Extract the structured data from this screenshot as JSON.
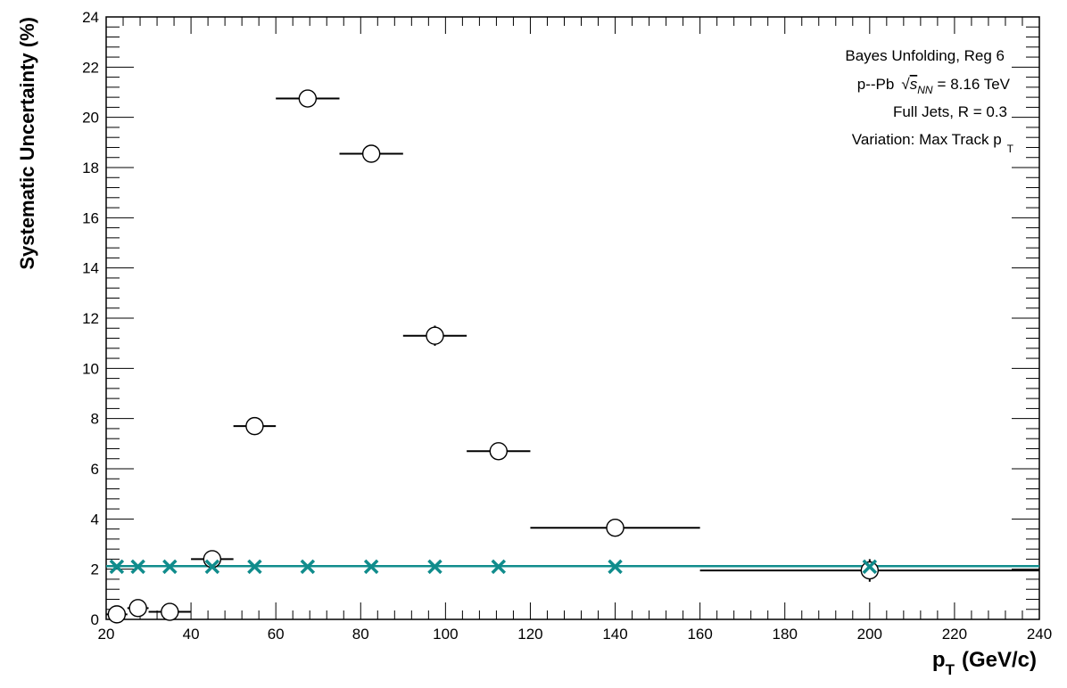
{
  "chart_data": {
    "type": "scatter",
    "xlabel": "p",
    "xlabel_sub": "T",
    "xlabel_unit": "(GeV/c)",
    "ylabel": "Systematic Uncertainty (%)",
    "xlim": [
      20,
      240
    ],
    "ylim": [
      0,
      24
    ],
    "x_ticks": [
      "20",
      "40",
      "60",
      "80",
      "100",
      "120",
      "140",
      "160",
      "180",
      "200",
      "220",
      "240"
    ],
    "y_ticks": [
      "0",
      "2",
      "4",
      "6",
      "8",
      "10",
      "12",
      "14",
      "16",
      "18",
      "20",
      "22",
      "24"
    ],
    "grid": false,
    "annotations": {
      "line1": "Bayes Unfolding, Reg 6",
      "line2_pre": "p--Pb",
      "line2_sym": "s",
      "line2_sub": "NN",
      "line2_post": "= 8.16 TeV",
      "line3": "Full Jets, R = 0.3",
      "line4_pre": "Variation: Max Track p",
      "line4_sub": "T"
    },
    "series": [
      {
        "marker": "open-circle",
        "color": "#000000",
        "points": [
          {
            "x": 22.5,
            "xlow": 20,
            "xhigh": 25,
            "y": 0.2,
            "yerr": 0.05
          },
          {
            "x": 27.5,
            "xlow": 25,
            "xhigh": 30,
            "y": 0.45,
            "yerr": 0.05
          },
          {
            "x": 35,
            "xlow": 30,
            "xhigh": 40,
            "y": 0.3,
            "yerr": 0.05
          },
          {
            "x": 45,
            "xlow": 40,
            "xhigh": 50,
            "y": 2.4,
            "yerr": 0.1
          },
          {
            "x": 55,
            "xlow": 50,
            "xhigh": 60,
            "y": 7.7,
            "yerr": 0.1
          },
          {
            "x": 67.5,
            "xlow": 60,
            "xhigh": 75,
            "y": 20.75,
            "yerr": 0.15
          },
          {
            "x": 82.5,
            "xlow": 75,
            "xhigh": 90,
            "y": 18.55,
            "yerr": 0.2
          },
          {
            "x": 97.5,
            "xlow": 90,
            "xhigh": 105,
            "y": 11.3,
            "yerr": 0.4
          },
          {
            "x": 112.5,
            "xlow": 105,
            "xhigh": 120,
            "y": 6.7,
            "yerr": 0.3
          },
          {
            "x": 140,
            "xlow": 120,
            "xhigh": 160,
            "y": 3.65,
            "yerr": 0.1
          },
          {
            "x": 200,
            "xlow": 160,
            "xhigh": 240,
            "y": 1.95,
            "yerr": 0.45
          }
        ]
      },
      {
        "marker": "x",
        "color": "#108c8c",
        "points": [
          {
            "x": 22.5,
            "y": 2.1
          },
          {
            "x": 27.5,
            "y": 2.1
          },
          {
            "x": 35,
            "y": 2.1
          },
          {
            "x": 45,
            "y": 2.1
          },
          {
            "x": 55,
            "y": 2.1
          },
          {
            "x": 67.5,
            "y": 2.1
          },
          {
            "x": 82.5,
            "y": 2.1
          },
          {
            "x": 97.5,
            "y": 2.1
          },
          {
            "x": 112.5,
            "y": 2.1
          },
          {
            "x": 140,
            "y": 2.1
          },
          {
            "x": 200,
            "y": 2.1
          }
        ]
      }
    ],
    "fit_line": {
      "color": "#108c8c",
      "y": 2.12
    }
  }
}
